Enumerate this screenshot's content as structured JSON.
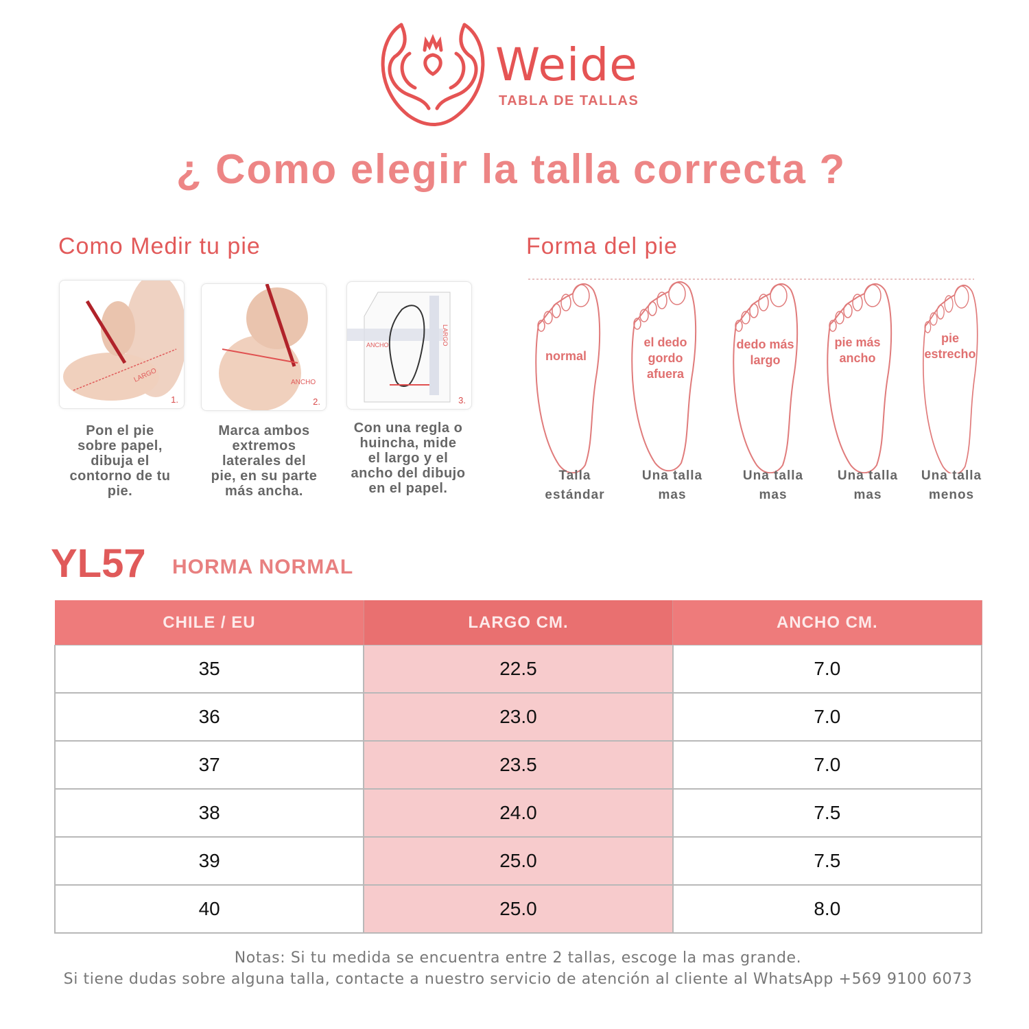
{
  "brand": {
    "name": "Weide",
    "subtitle": "TABLA DE TALLAS",
    "color": "#e55454"
  },
  "title": "¿ Como elegir la talla correcta ?",
  "measure": {
    "heading": "Como Medir tu pie",
    "steps": [
      {
        "number": "1.",
        "tag": "LARGO",
        "text": [
          "Pon el pie",
          "sobre papel,",
          "dibuja el",
          "contorno de tu",
          "pie."
        ]
      },
      {
        "number": "2.",
        "tag": "ANCHO",
        "text": [
          "Marca ambos",
          "extremos",
          "laterales del",
          "pie, en su parte",
          "más ancha."
        ]
      },
      {
        "number": "3.",
        "tag": "ANCHO",
        "tag2": "LARGO",
        "text": [
          "Con una regla o",
          "huincha, mide",
          "el largo y el",
          "ancho del dibujo",
          "en el papel."
        ]
      }
    ]
  },
  "shape": {
    "heading": "Forma del pie",
    "feet": [
      {
        "label": [
          "normal"
        ],
        "caption": [
          "Talla",
          "estándar"
        ]
      },
      {
        "label": [
          "el dedo",
          "gordo",
          "afuera"
        ],
        "caption": [
          "Una talla",
          "mas"
        ]
      },
      {
        "label": [
          "dedo más",
          "largo"
        ],
        "caption": [
          "Una talla",
          "mas"
        ]
      },
      {
        "label": [
          "pie más",
          "ancho"
        ],
        "caption": [
          "Una talla",
          "mas"
        ]
      },
      {
        "label": [
          "pie",
          "estrecho"
        ],
        "caption": [
          "Una talla",
          "menos"
        ]
      }
    ]
  },
  "model": {
    "code": "YL57",
    "fit": "HORMA NORMAL"
  },
  "table": {
    "headers": [
      "CHILE / EU",
      "LARGO CM.",
      "ANCHO CM."
    ],
    "rows": [
      [
        "35",
        "22.5",
        "7.0"
      ],
      [
        "36",
        "23.0",
        "7.0"
      ],
      [
        "37",
        "23.5",
        "7.0"
      ],
      [
        "38",
        "24.0",
        "7.5"
      ],
      [
        "39",
        "25.0",
        "7.5"
      ],
      [
        "40",
        "25.0",
        "8.0"
      ]
    ],
    "header_color": "#ee7b7b",
    "highlight_color": "#f7cbcc"
  },
  "notes": [
    "Notas: Si tu medida se encuentra entre 2 tallas, escoge la mas grande.",
    "Si tiene dudas sobre alguna talla, contacte a nuestro servicio de atención al cliente al WhatsApp +569 9100 6073"
  ]
}
